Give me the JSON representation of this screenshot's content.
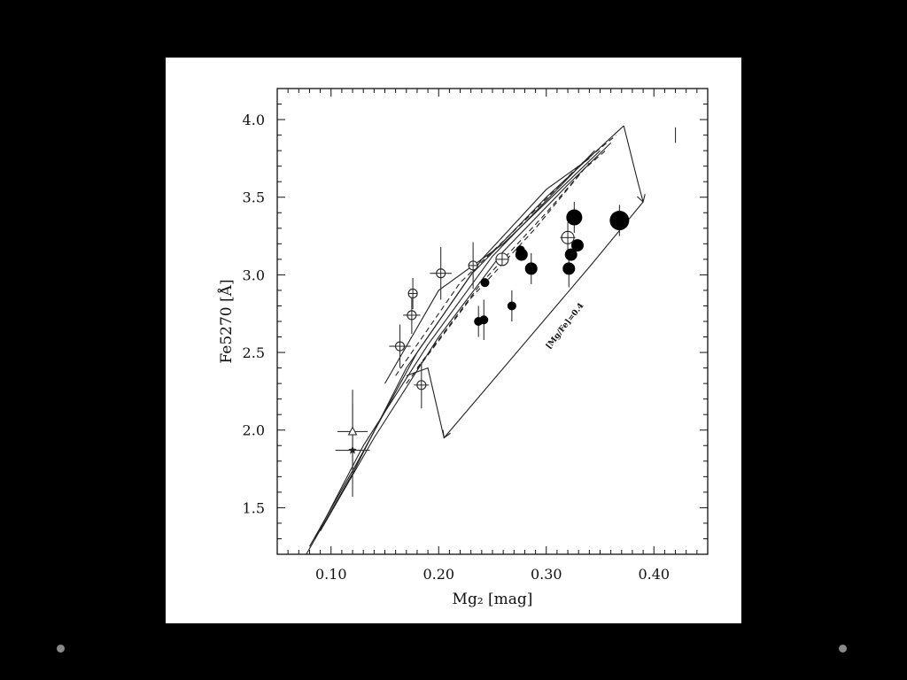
{
  "chart_data": {
    "type": "scatter",
    "xlabel": "Mg₂ [mag]",
    "ylabel": "Fe5270 [Å]",
    "xlim": [
      0.05,
      0.45
    ],
    "ylim": [
      1.2,
      4.2
    ],
    "xticks": [
      0.1,
      0.2,
      0.3,
      0.4
    ],
    "xtick_labels": [
      "0.10",
      "0.20",
      "0.30",
      "0.40"
    ],
    "yticks": [
      1.5,
      2.0,
      2.5,
      3.0,
      3.5,
      4.0
    ],
    "ytick_labels": [
      "1.5",
      "2.0",
      "2.5",
      "3.0",
      "3.5",
      "4.0"
    ],
    "grid": false,
    "annotation": "[Mg/Fe]=0.4",
    "series": [
      {
        "marker": "filled-circle",
        "points": [
          {
            "x": 0.243,
            "y": 2.95,
            "size": "small"
          },
          {
            "x": 0.237,
            "y": 2.7,
            "size": "small"
          },
          {
            "x": 0.242,
            "y": 2.71,
            "size": "small"
          },
          {
            "x": 0.268,
            "y": 2.8,
            "size": "small"
          },
          {
            "x": 0.276,
            "y": 3.16,
            "size": "small"
          },
          {
            "x": 0.277,
            "y": 3.13,
            "size": "medium"
          },
          {
            "x": 0.286,
            "y": 3.04,
            "size": "medium"
          },
          {
            "x": 0.321,
            "y": 3.04,
            "size": "medium"
          },
          {
            "x": 0.323,
            "y": 3.13,
            "size": "medium"
          },
          {
            "x": 0.329,
            "y": 3.19,
            "size": "medium"
          },
          {
            "x": 0.326,
            "y": 3.37,
            "size": "large"
          },
          {
            "x": 0.368,
            "y": 3.35,
            "size": "xlarge"
          }
        ]
      },
      {
        "marker": "open-circle-cross",
        "points": [
          {
            "x": 0.164,
            "y": 2.54,
            "size": "small"
          },
          {
            "x": 0.175,
            "y": 2.74,
            "size": "small"
          },
          {
            "x": 0.176,
            "y": 2.88,
            "size": "small"
          },
          {
            "x": 0.184,
            "y": 2.29,
            "size": "small"
          },
          {
            "x": 0.202,
            "y": 3.01,
            "size": "small"
          },
          {
            "x": 0.232,
            "y": 3.06,
            "size": "small"
          },
          {
            "x": 0.259,
            "y": 3.1,
            "size": "medium"
          },
          {
            "x": 0.32,
            "y": 3.24,
            "size": "medium"
          }
        ]
      },
      {
        "marker": "open-triangle",
        "points": [
          {
            "x": 0.12,
            "y": 1.99
          }
        ]
      },
      {
        "marker": "star",
        "points": [
          {
            "x": 0.12,
            "y": 1.87
          }
        ]
      }
    ],
    "error_bars": [
      {
        "x": 0.164,
        "y": 2.54,
        "dx": 0.01,
        "dy": 0.14
      },
      {
        "x": 0.175,
        "y": 2.74,
        "dx": 0.008,
        "dy": 0.12
      },
      {
        "x": 0.176,
        "y": 2.88,
        "dx": 0.0,
        "dy": 0.1
      },
      {
        "x": 0.184,
        "y": 2.29,
        "dx": 0.007,
        "dy": 0.15
      },
      {
        "x": 0.202,
        "y": 3.01,
        "dx": 0.01,
        "dy": 0.17
      },
      {
        "x": 0.232,
        "y": 3.06,
        "dx": 0.0,
        "dy": 0.15
      },
      {
        "x": 0.12,
        "y": 1.99,
        "dx": 0.014,
        "dy": 0.27
      },
      {
        "x": 0.12,
        "y": 1.87,
        "dx": 0.016,
        "dy": 0.3
      },
      {
        "x": 0.237,
        "y": 2.7,
        "dx": 0.0,
        "dy": 0.1
      },
      {
        "x": 0.242,
        "y": 2.71,
        "dx": 0.0,
        "dy": 0.13
      },
      {
        "x": 0.268,
        "y": 2.8,
        "dx": 0.0,
        "dy": 0.1
      },
      {
        "x": 0.286,
        "y": 3.04,
        "dx": 0.0,
        "dy": 0.1
      },
      {
        "x": 0.321,
        "y": 3.04,
        "dx": 0.0,
        "dy": 0.12
      },
      {
        "x": 0.326,
        "y": 3.37,
        "dx": 0.0,
        "dy": 0.1
      },
      {
        "x": 0.368,
        "y": 3.35,
        "dx": 0.0,
        "dy": 0.1
      },
      {
        "x": 0.32,
        "y": 3.24,
        "dx": 0.007,
        "dy": 0.1
      },
      {
        "x": 0.42,
        "y": 3.9,
        "dx": 0.0,
        "dy": 0.05
      }
    ],
    "model_lines": [
      {
        "style": "solid",
        "x": [
          0.077,
          0.12,
          0.17,
          0.23,
          0.3,
          0.35,
          0.372
        ],
        "y": [
          1.2,
          1.72,
          2.4,
          3.0,
          3.5,
          3.82,
          3.96
        ]
      },
      {
        "style": "solid",
        "x": [
          0.08,
          0.125,
          0.18,
          0.24,
          0.3,
          0.34
        ],
        "y": [
          1.25,
          1.8,
          2.5,
          3.1,
          3.55,
          3.75
        ]
      },
      {
        "style": "solid",
        "x": [
          0.085,
          0.13,
          0.19,
          0.25,
          0.31,
          0.345
        ],
        "y": [
          1.3,
          1.9,
          2.55,
          3.12,
          3.55,
          3.8
        ]
      },
      {
        "style": "solid",
        "x": [
          0.09,
          0.14,
          0.2,
          0.26,
          0.32,
          0.36
        ],
        "y": [
          1.35,
          1.95,
          2.6,
          3.15,
          3.58,
          3.85
        ]
      },
      {
        "style": "solid",
        "x": [
          0.15,
          0.2,
          0.26,
          0.32,
          0.35
        ],
        "y": [
          2.3,
          2.9,
          3.2,
          3.6,
          3.8
        ]
      },
      {
        "style": "dashed",
        "x": [
          0.16,
          0.22,
          0.28,
          0.33,
          0.365
        ],
        "y": [
          2.35,
          2.95,
          3.35,
          3.7,
          3.9
        ]
      },
      {
        "style": "dashed",
        "x": [
          0.17,
          0.23,
          0.29,
          0.335,
          0.355
        ],
        "y": [
          2.3,
          2.85,
          3.3,
          3.68,
          3.8
        ]
      },
      {
        "style": "dashed",
        "x": [
          0.18,
          0.24,
          0.3,
          0.34
        ],
        "y": [
          2.4,
          2.95,
          3.4,
          3.72
        ]
      },
      {
        "style": "solid",
        "x": [
          0.372,
          0.385,
          0.39
        ],
        "y": [
          3.96,
          3.6,
          3.47
        ]
      },
      {
        "style": "solid",
        "x": [
          0.39,
          0.34,
          0.205
        ],
        "y": [
          3.47,
          3.05,
          1.95
        ]
      },
      {
        "style": "solid",
        "x": [
          0.205,
          0.19,
          0.17
        ],
        "y": [
          1.95,
          2.4,
          2.35
        ]
      }
    ]
  }
}
